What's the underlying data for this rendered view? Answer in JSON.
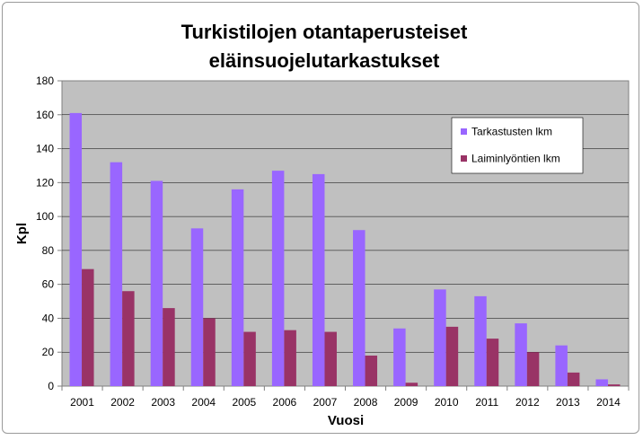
{
  "chart_data": {
    "type": "bar",
    "title": [
      "Turkistilojen otantaperusteiset",
      "eläinsuojelutarkastukset"
    ],
    "xlabel": "Vuosi",
    "ylabel": "Kpl",
    "ylim": [
      0,
      180
    ],
    "yticks": [
      0,
      20,
      40,
      60,
      80,
      100,
      120,
      140,
      160,
      180
    ],
    "grid": true,
    "legend_position": "top-right",
    "categories": [
      "2001",
      "2002",
      "2003",
      "2004",
      "2005",
      "2006",
      "2007",
      "2008",
      "2009",
      "2010",
      "2011",
      "2012",
      "2013",
      "2014"
    ],
    "series": [
      {
        "name": "Tarkastusten lkm",
        "color": "#9966ff",
        "values": [
          161,
          132,
          121,
          93,
          116,
          127,
          125,
          92,
          34,
          57,
          53,
          37,
          24,
          4
        ]
      },
      {
        "name": "Laiminlyöntien lkm",
        "color": "#993366",
        "values": [
          69,
          56,
          46,
          40,
          32,
          33,
          32,
          18,
          2,
          35,
          28,
          20,
          8,
          1
        ]
      }
    ],
    "plot_background": "#c0c0c0"
  }
}
